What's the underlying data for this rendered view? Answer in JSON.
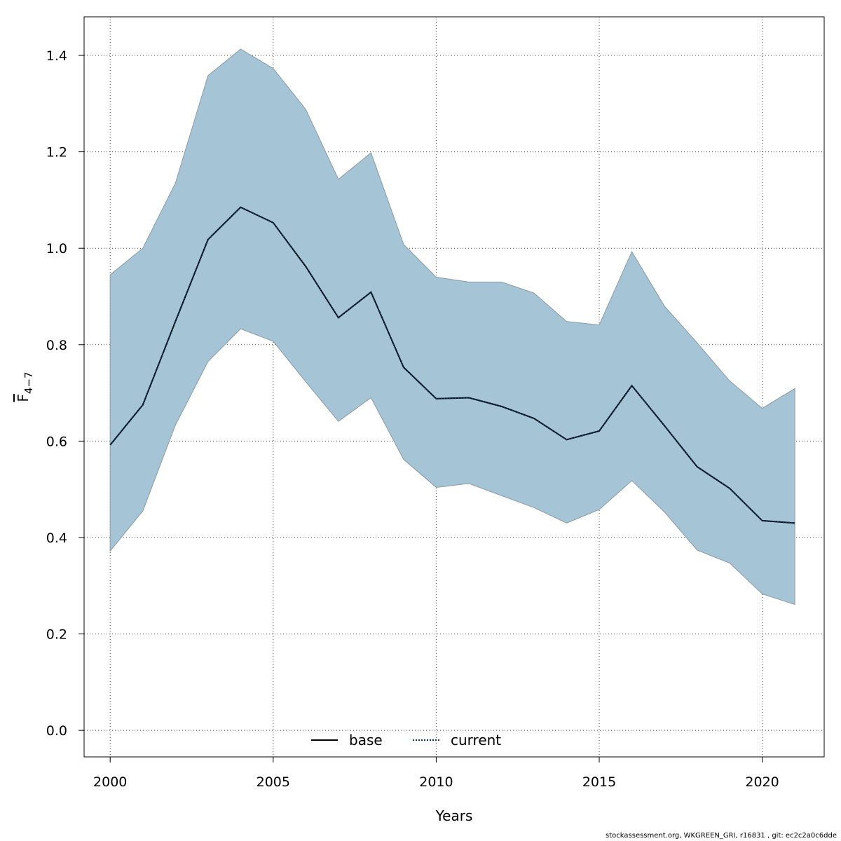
{
  "chart_data": {
    "type": "area",
    "xlabel": "Years",
    "ylabel": {
      "main": "F",
      "subscript": "4−7"
    },
    "xlim": [
      1999.2,
      2021.9
    ],
    "ylim": [
      -0.055,
      1.48
    ],
    "xticks": [
      2000,
      2005,
      2010,
      2015,
      2020
    ],
    "yticks": [
      0.0,
      0.2,
      0.4,
      0.6,
      0.8,
      1.0,
      1.2,
      1.4
    ],
    "ytick_labels": [
      "0.0",
      "0.2",
      "0.4",
      "0.6",
      "0.8",
      "1.0",
      "1.2",
      "1.4"
    ],
    "grid": true,
    "legend_position": "bottom-center",
    "x": [
      2000,
      2001,
      2002,
      2003,
      2004,
      2005,
      2006,
      2007,
      2008,
      2009,
      2010,
      2011,
      2012,
      2013,
      2014,
      2015,
      2016,
      2017,
      2018,
      2019,
      2020,
      2021
    ],
    "band": {
      "upper": [
        0.945,
        1.0,
        1.135,
        1.358,
        1.413,
        1.373,
        1.288,
        1.143,
        1.198,
        1.008,
        0.94,
        0.93,
        0.93,
        0.907,
        0.848,
        0.841,
        0.993,
        0.88,
        0.804,
        0.725,
        0.668,
        0.709
      ],
      "lower": [
        0.372,
        0.455,
        0.633,
        0.765,
        0.833,
        0.807,
        0.723,
        0.641,
        0.69,
        0.562,
        0.504,
        0.512,
        0.487,
        0.462,
        0.43,
        0.458,
        0.518,
        0.453,
        0.374,
        0.347,
        0.283,
        0.261
      ],
      "color": "#a5c4d5",
      "edge_color": "#8a9aa5"
    },
    "series": [
      {
        "name": "base",
        "style": "solid",
        "color": "#000000",
        "values": [
          0.592,
          0.675,
          0.848,
          1.018,
          1.085,
          1.053,
          0.962,
          0.856,
          0.909,
          0.753,
          0.688,
          0.69,
          0.672,
          0.647,
          0.603,
          0.621,
          0.715,
          0.632,
          0.547,
          0.502,
          0.435,
          0.43
        ]
      },
      {
        "name": "current",
        "style": "dotted",
        "color": "#003a5c",
        "values": [
          0.592,
          0.675,
          0.848,
          1.018,
          1.085,
          1.053,
          0.962,
          0.856,
          0.909,
          0.753,
          0.688,
          0.69,
          0.672,
          0.647,
          0.603,
          0.621,
          0.715,
          0.632,
          0.547,
          0.502,
          0.435,
          0.43
        ]
      }
    ]
  },
  "footer": "stockassessment.org, WKGREEN_GRI, r16831 , git: ec2c2a0c6dde"
}
